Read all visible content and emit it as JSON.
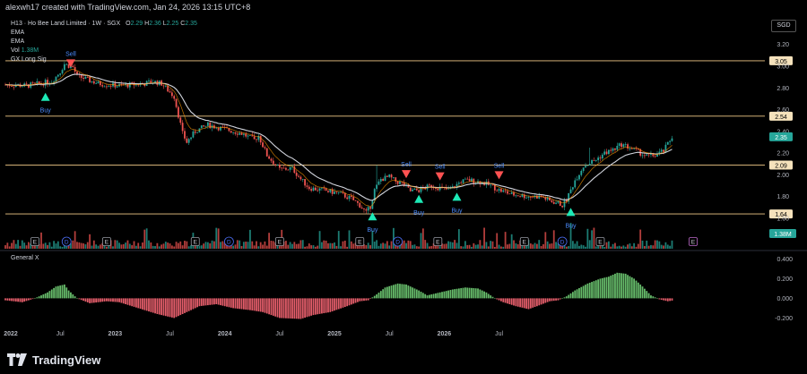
{
  "header": {
    "creator_line": "alexwh17 created with TradingView.com, Jan 24, 2026 13:15 UTC+8"
  },
  "legend": {
    "symbol": "H13 · Ho Bee Land Limited · 1W · SGX",
    "ohlc": [
      {
        "label": "O",
        "value": "2.29"
      },
      {
        "label": "H",
        "value": "2.36"
      },
      {
        "label": "L",
        "value": "2.25"
      },
      {
        "label": "C",
        "value": "2.35"
      }
    ],
    "vol_label": "Vol",
    "vol_value": "1.38M",
    "indicators": [
      "EMA",
      "EMA"
    ],
    "gx_label": "GX Long Sig"
  },
  "currency": "SGD",
  "pane2_label": "General X",
  "branding": "TradingView",
  "colors": {
    "up": "#26a69a",
    "down": "#ef5350",
    "ema_slow": "#d1d4dc",
    "ema_fast": "#ff9800",
    "hline": "#f0c987",
    "osc_up": "#66bb6a",
    "osc_down": "#e35d6a",
    "signal_buy": "#1de9b6",
    "signal_sell": "#ff5252",
    "signal_text": "#4c8dff"
  },
  "chart_data": {
    "type": "candlestick",
    "price_axis": {
      "ticks": [
        "3.20",
        "3.00",
        "2.80",
        "2.60",
        "2.40",
        "2.20",
        "2.00",
        "1.80",
        "1.60"
      ],
      "range": [
        1.55,
        3.28
      ]
    },
    "horizontal_levels": [
      "3.05",
      "2.54",
      "2.09",
      "1.64"
    ],
    "last_price": "2.35",
    "volume_label": "1.38M",
    "time_axis": {
      "labels": [
        "2022",
        "Jul",
        "2023",
        "Jul",
        "2024",
        "Jul",
        "2025",
        "Jul",
        "2026",
        "Jul"
      ]
    },
    "oscillator_axis": {
      "ticks": [
        "0.400",
        "0.200",
        "0.000",
        "-0.200"
      ],
      "range": [
        -0.26,
        0.44
      ]
    },
    "price_path": [
      [
        0,
        2.83
      ],
      [
        10,
        2.82
      ],
      [
        22,
        2.86
      ],
      [
        26,
        2.95
      ],
      [
        28,
        3.02
      ],
      [
        32,
        2.99
      ],
      [
        34,
        2.91
      ],
      [
        44,
        2.84
      ],
      [
        54,
        2.82
      ],
      [
        66,
        2.84
      ],
      [
        70,
        2.86
      ],
      [
        74,
        2.84
      ],
      [
        80,
        2.72
      ],
      [
        82,
        2.55
      ],
      [
        84,
        2.38
      ],
      [
        86,
        2.3
      ],
      [
        90,
        2.4
      ],
      [
        96,
        2.46
      ],
      [
        104,
        2.42
      ],
      [
        112,
        2.38
      ],
      [
        118,
        2.32
      ],
      [
        120,
        2.36
      ],
      [
        124,
        2.18
      ],
      [
        130,
        2.05
      ],
      [
        136,
        2.06
      ],
      [
        140,
        1.96
      ],
      [
        144,
        1.88
      ],
      [
        150,
        1.86
      ],
      [
        158,
        1.83
      ],
      [
        164,
        1.78
      ],
      [
        168,
        1.72
      ],
      [
        171,
        1.65
      ],
      [
        173,
        1.71
      ],
      [
        175,
        1.86
      ],
      [
        178,
        1.96
      ],
      [
        182,
        1.98
      ],
      [
        185,
        1.94
      ],
      [
        188,
        1.92
      ],
      [
        192,
        1.85
      ],
      [
        196,
        1.86
      ],
      [
        202,
        1.9
      ],
      [
        206,
        1.88
      ],
      [
        210,
        1.86
      ],
      [
        212,
        1.88
      ],
      [
        216,
        1.94
      ],
      [
        220,
        1.95
      ],
      [
        226,
        1.93
      ],
      [
        230,
        1.9
      ],
      [
        234,
        1.86
      ],
      [
        240,
        1.82
      ],
      [
        248,
        1.8
      ],
      [
        254,
        1.8
      ],
      [
        258,
        1.76
      ],
      [
        262,
        1.74
      ],
      [
        264,
        1.72
      ],
      [
        266,
        1.77
      ],
      [
        270,
        1.95
      ],
      [
        274,
        2.08
      ],
      [
        280,
        2.14
      ],
      [
        284,
        2.2
      ],
      [
        288,
        2.23
      ],
      [
        292,
        2.28
      ],
      [
        296,
        2.25
      ],
      [
        300,
        2.21
      ],
      [
        304,
        2.17
      ],
      [
        308,
        2.18
      ],
      [
        312,
        2.22
      ],
      [
        316,
        2.35
      ]
    ],
    "spikes": [
      [
        117,
        2.4
      ],
      [
        176,
        2.09
      ],
      [
        277,
        2.25
      ]
    ],
    "signals": [
      {
        "type": "sell",
        "label": "Sell",
        "week": 31,
        "price": 3.03
      },
      {
        "type": "buy",
        "label": "Buy",
        "week": 19,
        "price": 2.78
      },
      {
        "type": "buy",
        "label": "Buy",
        "week": 174,
        "price": 1.68
      },
      {
        "type": "sell",
        "label": "Sell",
        "week": 190,
        "price": 2.01
      },
      {
        "type": "buy",
        "label": "Buy",
        "week": 196,
        "price": 1.84
      },
      {
        "type": "sell",
        "label": "Sell",
        "week": 206,
        "price": 1.99
      },
      {
        "type": "buy",
        "label": "Buy",
        "week": 214,
        "price": 1.86
      },
      {
        "type": "sell",
        "label": "Sell",
        "week": 234,
        "price": 2.0
      },
      {
        "type": "buy",
        "label": "Buy",
        "week": 268,
        "price": 1.72
      }
    ],
    "event_markers": [
      {
        "week": 14,
        "kind": "E"
      },
      {
        "week": 29,
        "kind": "D"
      },
      {
        "week": 48,
        "kind": "E"
      },
      {
        "week": 90,
        "kind": "E"
      },
      {
        "week": 106,
        "kind": "D"
      },
      {
        "week": 130,
        "kind": "E"
      },
      {
        "week": 168,
        "kind": "E"
      },
      {
        "week": 186,
        "kind": "D"
      },
      {
        "week": 205,
        "kind": "E"
      },
      {
        "week": 246,
        "kind": "E"
      },
      {
        "week": 264,
        "kind": "D"
      },
      {
        "week": 282,
        "kind": "E"
      },
      {
        "week": 326,
        "kind": "E"
      }
    ],
    "oscillator_path": [
      [
        0,
        -0.02
      ],
      [
        8,
        -0.04
      ],
      [
        14,
        0.0
      ],
      [
        20,
        0.06
      ],
      [
        24,
        0.12
      ],
      [
        28,
        0.14
      ],
      [
        30,
        0.08
      ],
      [
        34,
        0.0
      ],
      [
        40,
        -0.05
      ],
      [
        48,
        -0.03
      ],
      [
        54,
        -0.04
      ],
      [
        60,
        -0.08
      ],
      [
        66,
        -0.12
      ],
      [
        72,
        -0.16
      ],
      [
        80,
        -0.2
      ],
      [
        86,
        -0.14
      ],
      [
        92,
        -0.08
      ],
      [
        100,
        -0.06
      ],
      [
        108,
        -0.1
      ],
      [
        116,
        -0.12
      ],
      [
        122,
        -0.14
      ],
      [
        130,
        -0.2
      ],
      [
        140,
        -0.21
      ],
      [
        146,
        -0.17
      ],
      [
        154,
        -0.14
      ],
      [
        162,
        -0.08
      ],
      [
        168,
        -0.03
      ],
      [
        172,
        -0.02
      ],
      [
        176,
        0.04
      ],
      [
        180,
        0.11
      ],
      [
        186,
        0.15
      ],
      [
        190,
        0.14
      ],
      [
        196,
        0.08
      ],
      [
        200,
        0.03
      ],
      [
        206,
        0.06
      ],
      [
        212,
        0.09
      ],
      [
        218,
        0.11
      ],
      [
        224,
        0.1
      ],
      [
        228,
        0.06
      ],
      [
        232,
        0.0
      ],
      [
        236,
        -0.04
      ],
      [
        242,
        -0.08
      ],
      [
        248,
        -0.11
      ],
      [
        252,
        -0.08
      ],
      [
        258,
        -0.03
      ],
      [
        262,
        -0.02
      ],
      [
        266,
        0.02
      ],
      [
        270,
        0.08
      ],
      [
        276,
        0.15
      ],
      [
        282,
        0.2
      ],
      [
        286,
        0.22
      ],
      [
        290,
        0.26
      ],
      [
        294,
        0.25
      ],
      [
        298,
        0.2
      ],
      [
        302,
        0.12
      ],
      [
        306,
        0.03
      ],
      [
        310,
        -0.01
      ],
      [
        314,
        -0.03
      ],
      [
        317,
        -0.02
      ]
    ]
  }
}
